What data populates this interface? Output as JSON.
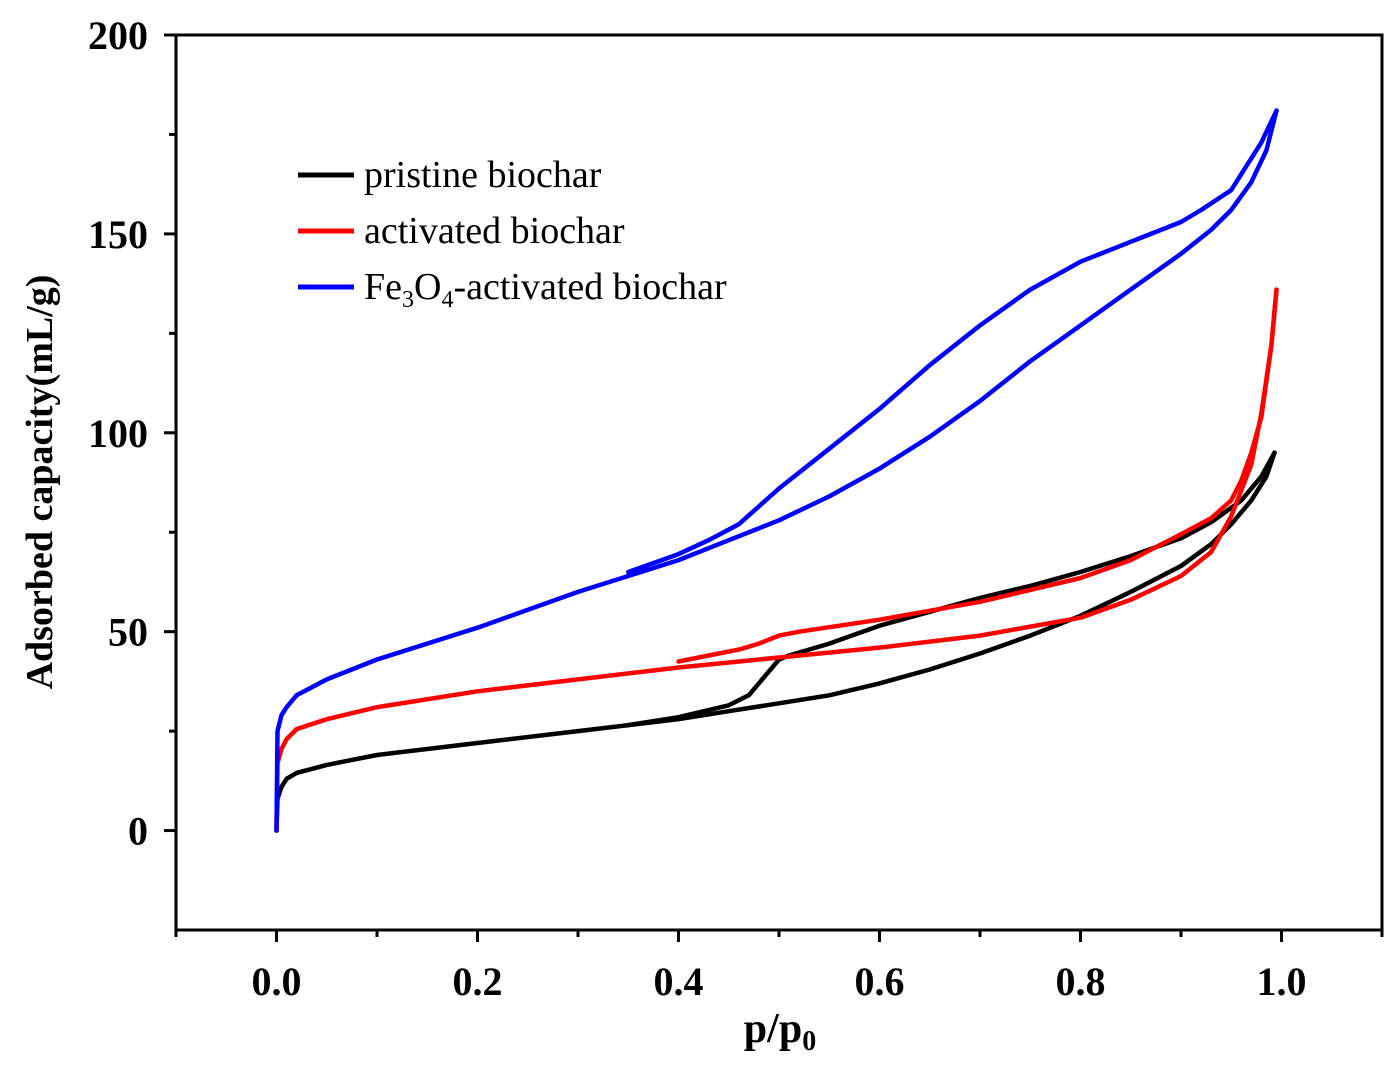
{
  "chart_data": {
    "type": "line",
    "title": "",
    "xlabel": "p/p",
    "xlabel_sub": "0",
    "ylabel": "Adsorbed capacity(mL/g)",
    "xlim": [
      -0.1,
      1.1
    ],
    "ylim": [
      -25,
      200
    ],
    "x_ticks": [
      0.0,
      0.2,
      0.4,
      0.6,
      0.8,
      1.0
    ],
    "x_tick_labels": [
      "0.0",
      "0.2",
      "0.4",
      "0.6",
      "0.8",
      "1.0"
    ],
    "x_minor_ticks": [
      -0.1,
      0.1,
      0.3,
      0.5,
      0.7,
      0.9,
      1.1
    ],
    "y_ticks": [
      0,
      50,
      100,
      150,
      200
    ],
    "y_tick_labels": [
      "0",
      "50",
      "100",
      "150",
      "200"
    ],
    "y_minor_ticks": [
      25,
      75,
      125,
      175
    ],
    "legend_position": "top-left",
    "series": [
      {
        "name": "pristine  biochar",
        "label_parts": [
          {
            "text": "pristine  biochar",
            "sub": false
          }
        ],
        "color": "#000000",
        "adsorption": {
          "x": [
            0.0,
            0.001,
            0.005,
            0.01,
            0.02,
            0.05,
            0.1,
            0.2,
            0.3,
            0.4,
            0.45,
            0.5,
            0.55,
            0.6,
            0.65,
            0.7,
            0.75,
            0.8,
            0.85,
            0.9,
            0.93,
            0.95,
            0.97,
            0.985,
            0.993
          ],
          "y": [
            0,
            8,
            11,
            13,
            14.5,
            16.5,
            19,
            22,
            25,
            28,
            30,
            32,
            34,
            37,
            40.5,
            44.5,
            49,
            54,
            60,
            66.5,
            72,
            77,
            83,
            89,
            95
          ]
        },
        "desorption": {
          "x": [
            0.993,
            0.98,
            0.96,
            0.93,
            0.9,
            0.85,
            0.8,
            0.75,
            0.7,
            0.65,
            0.6,
            0.55,
            0.51,
            0.5,
            0.49,
            0.47,
            0.45,
            0.4,
            0.35
          ],
          "y": [
            95,
            89,
            83,
            77.5,
            73.5,
            69,
            65,
            61.5,
            58.5,
            55,
            51.5,
            47,
            44,
            43,
            40,
            34,
            31.5,
            28.5,
            26.5
          ]
        }
      },
      {
        "name": "activated biochar",
        "label_parts": [
          {
            "text": "activated biochar",
            "sub": false
          }
        ],
        "color": "#ff0000",
        "adsorption": {
          "x": [
            0.0,
            0.001,
            0.005,
            0.01,
            0.02,
            0.05,
            0.1,
            0.2,
            0.3,
            0.4,
            0.5,
            0.6,
            0.7,
            0.8,
            0.85,
            0.9,
            0.93,
            0.95,
            0.97,
            0.98,
            0.99,
            0.995
          ],
          "y": [
            0,
            17,
            20.5,
            23,
            25.5,
            28,
            31,
            35,
            38,
            41,
            43.5,
            46,
            49,
            53.5,
            58,
            64,
            70,
            79,
            92,
            105,
            122,
            136
          ]
        },
        "desorption": {
          "x": [
            0.995,
            0.99,
            0.98,
            0.97,
            0.96,
            0.95,
            0.93,
            0.9,
            0.85,
            0.8,
            0.7,
            0.6,
            0.52,
            0.5,
            0.48,
            0.46,
            0.44,
            0.4
          ],
          "y": [
            136,
            122,
            104,
            95,
            88,
            83,
            78.5,
            74.5,
            68,
            63.5,
            57.5,
            53,
            50,
            49,
            47,
            45.5,
            44.5,
            42.5
          ]
        }
      },
      {
        "name": "Fe3O4-activated biochar",
        "label_parts": [
          {
            "text": "Fe",
            "sub": false
          },
          {
            "text": "3",
            "sub": true
          },
          {
            "text": "O",
            "sub": false
          },
          {
            "text": "4",
            "sub": true
          },
          {
            "text": "-activated biochar",
            "sub": false
          }
        ],
        "color": "#0000ff",
        "adsorption": {
          "x": [
            0.0,
            0.001,
            0.005,
            0.01,
            0.02,
            0.05,
            0.1,
            0.2,
            0.3,
            0.4,
            0.45,
            0.5,
            0.55,
            0.6,
            0.65,
            0.7,
            0.75,
            0.8,
            0.85,
            0.9,
            0.93,
            0.95,
            0.97,
            0.985,
            0.995
          ],
          "y": [
            0,
            25,
            29,
            31,
            34,
            38,
            43,
            51,
            60,
            68,
            73,
            78,
            84,
            91,
            99,
            108,
            118,
            127,
            136,
            145,
            151,
            156,
            163,
            171,
            181
          ]
        },
        "desorption": {
          "x": [
            0.995,
            0.98,
            0.95,
            0.92,
            0.9,
            0.85,
            0.8,
            0.75,
            0.7,
            0.65,
            0.6,
            0.55,
            0.5,
            0.46,
            0.43,
            0.4,
            0.35
          ],
          "y": [
            181,
            173,
            161,
            156,
            153,
            148,
            143,
            136,
            127,
            117,
            106,
            96,
            86,
            77,
            73,
            69.5,
            65
          ]
        }
      }
    ]
  }
}
